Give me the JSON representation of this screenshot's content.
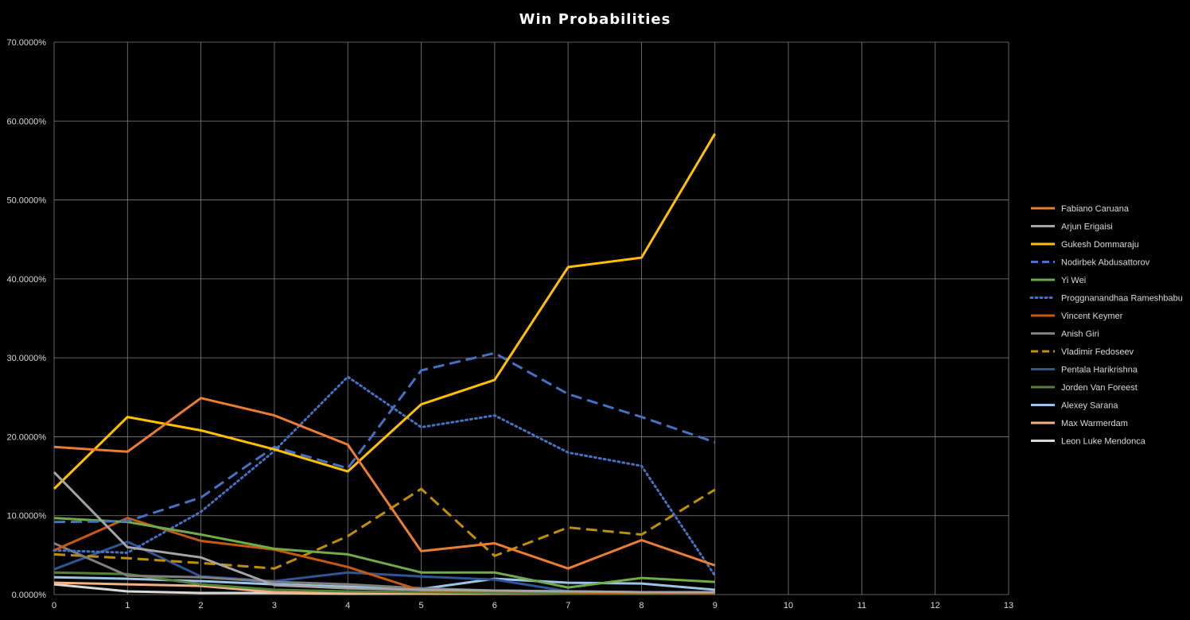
{
  "chart_data": {
    "type": "line",
    "title": "Win Probabilities",
    "xlabel": "",
    "ylabel": "",
    "x": [
      0,
      1,
      2,
      3,
      4,
      5,
      6,
      7,
      8,
      9
    ],
    "x_ticks": [
      "0",
      "1",
      "2",
      "3",
      "4",
      "5",
      "6",
      "7",
      "8",
      "9",
      "10",
      "11",
      "12",
      "13"
    ],
    "xlim": [
      0,
      13
    ],
    "y_ticks": [
      "0.0000%",
      "10.0000%",
      "20.0000%",
      "30.0000%",
      "40.0000%",
      "50.0000%",
      "60.0000%",
      "70.0000%"
    ],
    "ylim": [
      0,
      70
    ],
    "y_unit": "percent",
    "grid": true,
    "legend_position": "right",
    "series": [
      {
        "name": "Fabiano Caruana",
        "color": "#ED7D31",
        "dash": "solid",
        "values": [
          18.7,
          18.1,
          24.9,
          22.7,
          19.0,
          5.5,
          6.5,
          3.3,
          6.9,
          3.7
        ]
      },
      {
        "name": "Arjun Erigaisi",
        "color": "#A5A5A5",
        "dash": "solid",
        "values": [
          15.5,
          6.0,
          4.7,
          1.2,
          0.8,
          0.6,
          0.5,
          0.4,
          0.3,
          0.3
        ]
      },
      {
        "name": "Gukesh Dommaraju",
        "color": "#FFC000",
        "dash": "solid",
        "values": [
          13.4,
          22.5,
          20.8,
          18.4,
          15.6,
          24.1,
          27.2,
          41.5,
          42.7,
          58.4
        ]
      },
      {
        "name": "Nodirbek Abdusattorov",
        "color": "#4472C4",
        "dash": "dash",
        "values": [
          9.2,
          9.3,
          12.3,
          18.7,
          16.0,
          28.4,
          30.6,
          25.4,
          22.5,
          19.3
        ]
      },
      {
        "name": "Yi Wei",
        "color": "#70AD47",
        "dash": "solid",
        "values": [
          9.7,
          9.2,
          7.6,
          5.8,
          5.1,
          2.8,
          2.8,
          0.9,
          2.1,
          1.6
        ]
      },
      {
        "name": "Proggnanandhaa Rameshbabu",
        "color": "#4472C4",
        "dash": "dot",
        "values": [
          5.6,
          5.3,
          10.5,
          18.2,
          27.6,
          21.2,
          22.7,
          18.0,
          16.3,
          2.4
        ]
      },
      {
        "name": "Vincent Keymer",
        "color": "#C55A11",
        "dash": "solid",
        "values": [
          5.6,
          9.7,
          6.8,
          5.7,
          3.5,
          0.5,
          0.5,
          0.3,
          0.2,
          0.1
        ]
      },
      {
        "name": "Anish Giri",
        "color": "#7F7F7F",
        "dash": "solid",
        "values": [
          6.5,
          2.4,
          2.2,
          1.6,
          1.3,
          0.8,
          0.5,
          0.4,
          0.3,
          0.2
        ]
      },
      {
        "name": "Vladimir Fedoseev",
        "color": "#BF9000",
        "dash": "dash",
        "values": [
          5.1,
          4.6,
          4.0,
          3.3,
          7.4,
          13.4,
          4.9,
          8.5,
          7.6,
          13.3
        ]
      },
      {
        "name": "Pentala Harikrishna",
        "color": "#2F5597",
        "dash": "solid",
        "values": [
          3.2,
          6.7,
          2.3,
          1.7,
          2.8,
          2.3,
          1.9,
          0.4,
          0.3,
          0.2
        ]
      },
      {
        "name": "Jorden Van Foreest",
        "color": "#548235",
        "dash": "solid",
        "values": [
          2.8,
          2.6,
          1.3,
          0.6,
          0.4,
          0.3,
          0.2,
          0.1,
          0.1,
          0.1
        ]
      },
      {
        "name": "Alexey Sarana",
        "color": "#9DC3E6",
        "dash": "solid",
        "values": [
          2.2,
          2.0,
          1.7,
          1.3,
          1.0,
          0.7,
          2.0,
          1.5,
          1.4,
          0.6
        ]
      },
      {
        "name": "Max Warmerdam",
        "color": "#F4B183",
        "dash": "solid",
        "values": [
          1.5,
          1.3,
          1.1,
          0.3,
          0.2,
          0.1,
          0.1,
          0.1,
          0.1,
          0.1
        ]
      },
      {
        "name": "Leon Luke Mendonca",
        "color": "#D9D9D9",
        "dash": "solid",
        "values": [
          1.3,
          0.4,
          0.2,
          0.2,
          0.1,
          0.1,
          0.1,
          0.1,
          0.1,
          0.1
        ]
      }
    ]
  }
}
